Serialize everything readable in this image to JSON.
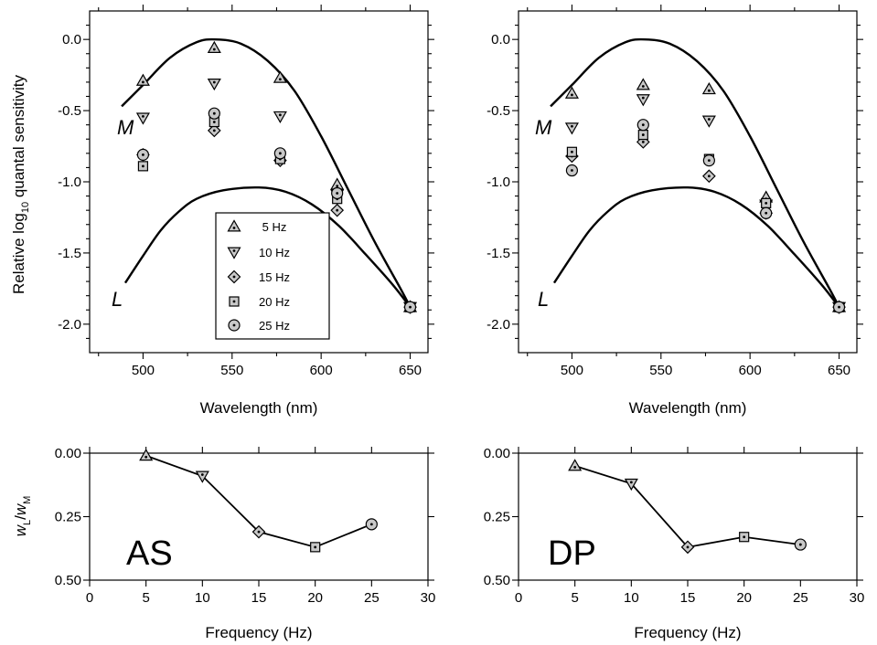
{
  "figure": {
    "marker_fill": "#c8c8c8",
    "marker_stroke": "#000000",
    "line_color": "#000000"
  },
  "chart_data": [
    {
      "type": "scatter",
      "panel": "AS-spectral",
      "title": "",
      "xlabel": "Wavelength (nm)",
      "ylabel": "Relative log10 quantal sensitivity",
      "xlim": [
        470,
        660
      ],
      "ylim": [
        -2.2,
        0.2
      ],
      "xticks": [
        "500",
        "550",
        "600",
        "650"
      ],
      "yticks": [
        "0.0",
        "-0.5",
        "-1.0",
        "-1.5",
        "-2.0"
      ],
      "curve_labels": [
        "M",
        "L"
      ],
      "legend": {
        "placement": "center",
        "entries": [
          "5 Hz",
          "10 Hz",
          "15 Hz",
          "20 Hz",
          "25 Hz"
        ]
      },
      "curves": [
        {
          "name": "M",
          "points": [
            [
              488,
              -0.47
            ],
            [
              500,
              -0.32
            ],
            [
              515,
              -0.13
            ],
            [
              530,
              -0.02
            ],
            [
              541,
              0.0
            ],
            [
              555,
              -0.03
            ],
            [
              570,
              -0.15
            ],
            [
              585,
              -0.36
            ],
            [
              600,
              -0.68
            ],
            [
              615,
              -1.05
            ],
            [
              630,
              -1.42
            ],
            [
              645,
              -1.76
            ],
            [
              650,
              -1.88
            ]
          ]
        },
        {
          "name": "L",
          "points": [
            [
              490,
              -1.71
            ],
            [
              500,
              -1.52
            ],
            [
              510,
              -1.34
            ],
            [
              520,
              -1.21
            ],
            [
              530,
              -1.12
            ],
            [
              545,
              -1.06
            ],
            [
              565,
              -1.04
            ],
            [
              580,
              -1.07
            ],
            [
              595,
              -1.16
            ],
            [
              610,
              -1.31
            ],
            [
              625,
              -1.51
            ],
            [
              640,
              -1.72
            ],
            [
              650,
              -1.88
            ]
          ]
        }
      ],
      "series": [
        {
          "name": "5 Hz",
          "marker": "triangle-up",
          "points": [
            [
              500,
              -0.29
            ],
            [
              540,
              -0.06
            ],
            [
              577,
              -0.27
            ],
            [
              609,
              -1.02
            ],
            [
              650,
              -1.88
            ]
          ]
        },
        {
          "name": "10 Hz",
          "marker": "triangle-down",
          "points": [
            [
              500,
              -0.55
            ],
            [
              540,
              -0.31
            ],
            [
              577,
              -0.54
            ],
            [
              609,
              -1.09
            ],
            [
              650,
              -1.88
            ]
          ]
        },
        {
          "name": "15 Hz",
          "marker": "diamond",
          "points": [
            [
              500,
              -0.81
            ],
            [
              540,
              -0.64
            ],
            [
              577,
              -0.85
            ],
            [
              609,
              -1.2
            ],
            [
              650,
              -1.88
            ]
          ]
        },
        {
          "name": "20 Hz",
          "marker": "square",
          "points": [
            [
              500,
              -0.89
            ],
            [
              540,
              -0.58
            ],
            [
              577,
              -0.84
            ],
            [
              609,
              -1.12
            ],
            [
              650,
              -1.88
            ]
          ]
        },
        {
          "name": "25 Hz",
          "marker": "circle",
          "points": [
            [
              500,
              -0.81
            ],
            [
              540,
              -0.52
            ],
            [
              577,
              -0.8
            ],
            [
              609,
              -1.08
            ],
            [
              650,
              -1.88
            ]
          ]
        }
      ]
    },
    {
      "type": "scatter",
      "panel": "DP-spectral",
      "title": "",
      "xlabel": "Wavelength (nm)",
      "ylabel": "",
      "xlim": [
        470,
        660
      ],
      "ylim": [
        -2.2,
        0.2
      ],
      "xticks": [
        "500",
        "550",
        "600",
        "650"
      ],
      "yticks": [
        "0.0",
        "-0.5",
        "-1.0",
        "-1.5",
        "-2.0"
      ],
      "curve_labels": [
        "M",
        "L"
      ],
      "curves": [
        {
          "name": "M",
          "points": [
            [
              488,
              -0.47
            ],
            [
              500,
              -0.32
            ],
            [
              515,
              -0.13
            ],
            [
              530,
              -0.02
            ],
            [
              541,
              0.0
            ],
            [
              555,
              -0.03
            ],
            [
              570,
              -0.15
            ],
            [
              585,
              -0.36
            ],
            [
              600,
              -0.68
            ],
            [
              615,
              -1.05
            ],
            [
              630,
              -1.42
            ],
            [
              645,
              -1.76
            ],
            [
              650,
              -1.88
            ]
          ]
        },
        {
          "name": "L",
          "points": [
            [
              490,
              -1.71
            ],
            [
              500,
              -1.52
            ],
            [
              510,
              -1.34
            ],
            [
              520,
              -1.21
            ],
            [
              530,
              -1.12
            ],
            [
              545,
              -1.06
            ],
            [
              565,
              -1.04
            ],
            [
              580,
              -1.07
            ],
            [
              595,
              -1.16
            ],
            [
              610,
              -1.31
            ],
            [
              625,
              -1.51
            ],
            [
              640,
              -1.72
            ],
            [
              650,
              -1.88
            ]
          ]
        }
      ],
      "series": [
        {
          "name": "5 Hz",
          "marker": "triangle-up",
          "points": [
            [
              500,
              -0.38
            ],
            [
              540,
              -0.32
            ],
            [
              577,
              -0.35
            ],
            [
              609,
              -1.11
            ],
            [
              650,
              -1.88
            ]
          ]
        },
        {
          "name": "10 Hz",
          "marker": "triangle-down",
          "points": [
            [
              500,
              -0.62
            ],
            [
              540,
              -0.42
            ],
            [
              577,
              -0.57
            ],
            [
              609,
              -1.16
            ],
            [
              650,
              -1.88
            ]
          ]
        },
        {
          "name": "15 Hz",
          "marker": "diamond",
          "points": [
            [
              500,
              -0.82
            ],
            [
              540,
              -0.72
            ],
            [
              577,
              -0.96
            ],
            [
              609,
              -1.22
            ],
            [
              650,
              -1.88
            ]
          ]
        },
        {
          "name": "20 Hz",
          "marker": "square",
          "points": [
            [
              500,
              -0.79
            ],
            [
              540,
              -0.67
            ],
            [
              577,
              -0.84
            ],
            [
              609,
              -1.15
            ],
            [
              650,
              -1.88
            ]
          ]
        },
        {
          "name": "25 Hz",
          "marker": "circle",
          "points": [
            [
              500,
              -0.92
            ],
            [
              540,
              -0.6
            ],
            [
              577,
              -0.85
            ],
            [
              609,
              -1.22
            ],
            [
              650,
              -1.88
            ]
          ]
        }
      ]
    },
    {
      "type": "line",
      "panel": "AS-weights",
      "label": "AS",
      "xlabel": "Frequency (Hz)",
      "ylabel": "wL/wM",
      "ylabel_parts": {
        "w1": "w",
        "sub1": "L",
        "slash": "/",
        "w2": "w",
        "sub2": "M"
      },
      "xlim": [
        0,
        30
      ],
      "ylim": [
        0.0,
        0.5
      ],
      "y_inverted": true,
      "xticks": [
        "0",
        "5",
        "10",
        "15",
        "20",
        "25",
        "30"
      ],
      "yticks": [
        "0.00",
        "0.25",
        "0.50"
      ],
      "markers": [
        "triangle-up",
        "triangle-down",
        "diamond",
        "square",
        "circle"
      ],
      "x": [
        5,
        10,
        15,
        20,
        25
      ],
      "y": [
        0.01,
        0.09,
        0.31,
        0.37,
        0.28
      ]
    },
    {
      "type": "line",
      "panel": "DP-weights",
      "label": "DP",
      "xlabel": "Frequency (Hz)",
      "ylabel": "",
      "xlim": [
        0,
        30
      ],
      "ylim": [
        0.0,
        0.5
      ],
      "y_inverted": true,
      "xticks": [
        "0",
        "5",
        "10",
        "15",
        "20",
        "25",
        "30"
      ],
      "yticks": [
        "0.00",
        "0.25",
        "0.50"
      ],
      "markers": [
        "triangle-up",
        "triangle-down",
        "diamond",
        "square",
        "circle"
      ],
      "x": [
        5,
        10,
        15,
        20,
        25
      ],
      "y": [
        0.05,
        0.12,
        0.37,
        0.33,
        0.36
      ]
    }
  ]
}
